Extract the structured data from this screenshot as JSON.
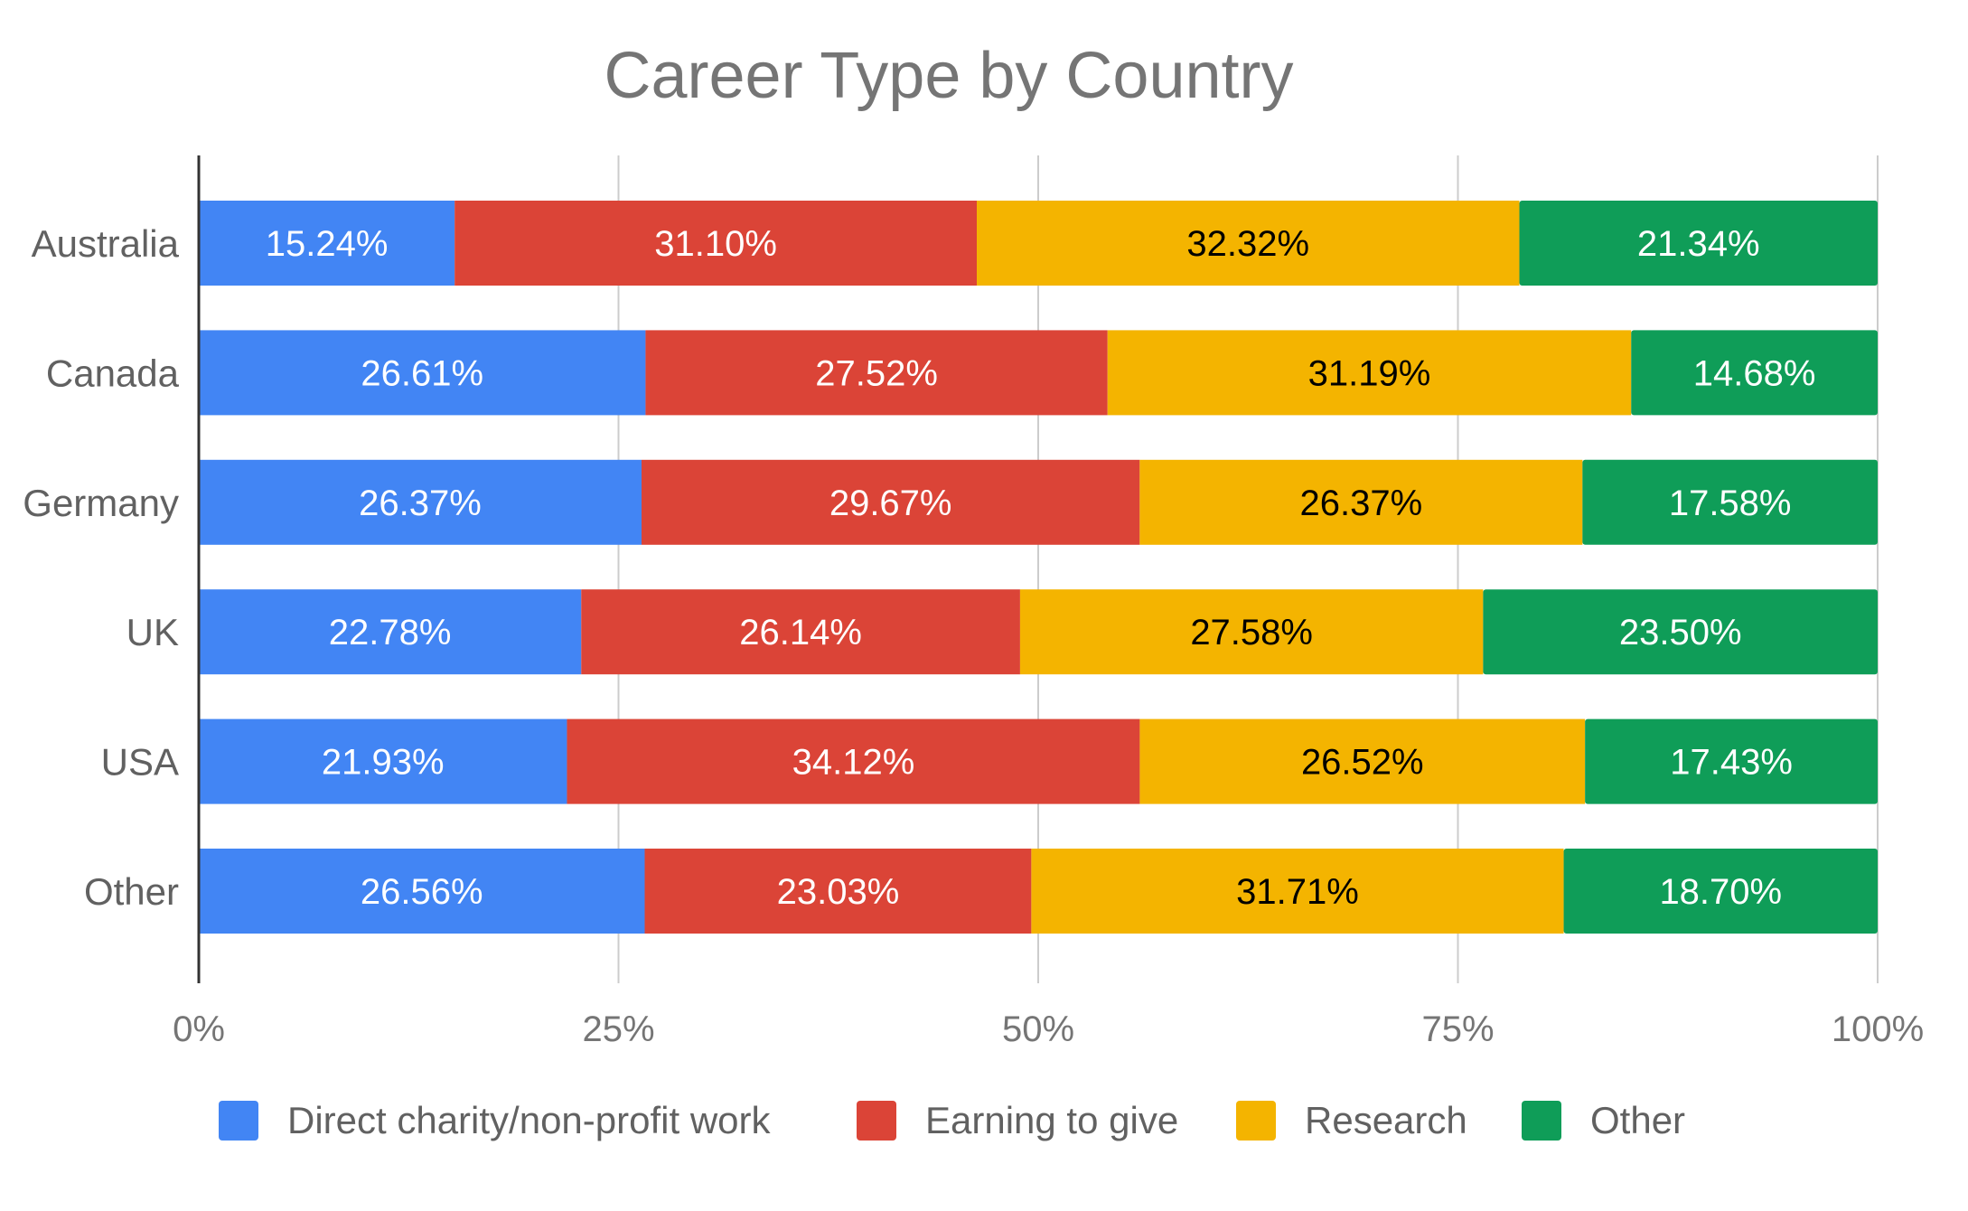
{
  "chart_data": {
    "type": "bar",
    "orientation": "horizontal",
    "stacked": "percent",
    "title": "Career Type by Country",
    "xlabel": "",
    "ylabel": "",
    "categories": [
      "Australia",
      "Canada",
      "Germany",
      "UK",
      "USA",
      "Other"
    ],
    "series": [
      {
        "name": "Direct charity/non-profit work",
        "color": "#4285f4",
        "label_color": "#ffffff",
        "values": [
          15.24,
          26.61,
          26.37,
          22.78,
          21.93,
          26.56
        ],
        "labels": [
          "15.24%",
          "26.61%",
          "26.37%",
          "22.78%",
          "21.93%",
          "26.56%"
        ]
      },
      {
        "name": "Earning to give",
        "color": "#db4437",
        "label_color": "#ffffff",
        "values": [
          31.1,
          27.52,
          29.67,
          26.14,
          34.12,
          23.03
        ],
        "labels": [
          "31.10%",
          "27.52%",
          "29.67%",
          "26.14%",
          "34.12%",
          "23.03%"
        ]
      },
      {
        "name": "Research",
        "color": "#f4b400",
        "label_color": "#000000",
        "values": [
          32.32,
          31.19,
          26.37,
          27.58,
          26.52,
          31.71
        ],
        "labels": [
          "32.32%",
          "31.19%",
          "26.37%",
          "27.58%",
          "26.52%",
          "31.71%"
        ]
      },
      {
        "name": "Other",
        "color": "#0f9d58",
        "label_color": "#ffffff",
        "values": [
          21.34,
          14.68,
          17.58,
          23.5,
          17.43,
          18.7
        ],
        "labels": [
          "21.34%",
          "14.68%",
          "17.58%",
          "23.50%",
          "17.43%",
          "18.70%"
        ]
      }
    ],
    "x_ticks": [
      "0%",
      "25%",
      "50%",
      "75%",
      "100%"
    ],
    "xlim": [
      0,
      100
    ],
    "grid": true,
    "legend": "bottom"
  }
}
